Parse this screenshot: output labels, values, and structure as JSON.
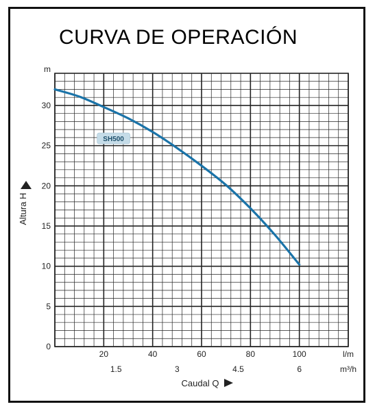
{
  "chart_data": {
    "type": "line",
    "title": "CURVA DE OPERACIÓN",
    "xlabel": "Caudal  Q",
    "ylabel": "Altura  H",
    "x_unit": "l/m",
    "x_unit_secondary": "m³/h",
    "y_unit": "m",
    "xlim": [
      0,
      120
    ],
    "ylim": [
      0,
      34
    ],
    "x_ticks": [
      20,
      40,
      60,
      80,
      100
    ],
    "x_ticks_secondary": [
      {
        "at": 25,
        "label": "1.5"
      },
      {
        "at": 50,
        "label": "3"
      },
      {
        "at": 75,
        "label": "4.5"
      },
      {
        "at": 100,
        "label": "6"
      }
    ],
    "y_ticks": [
      0,
      5,
      10,
      15,
      20,
      25,
      30
    ],
    "grid": true,
    "series": [
      {
        "name": "SH500",
        "color": "#1a73a8",
        "x": [
          0,
          10,
          20,
          30,
          40,
          50,
          60,
          70,
          80,
          90,
          100
        ],
        "y": [
          32,
          31.1,
          29.8,
          28.4,
          26.7,
          24.7,
          22.5,
          20.1,
          17.2,
          13.9,
          10.2
        ]
      }
    ]
  }
}
